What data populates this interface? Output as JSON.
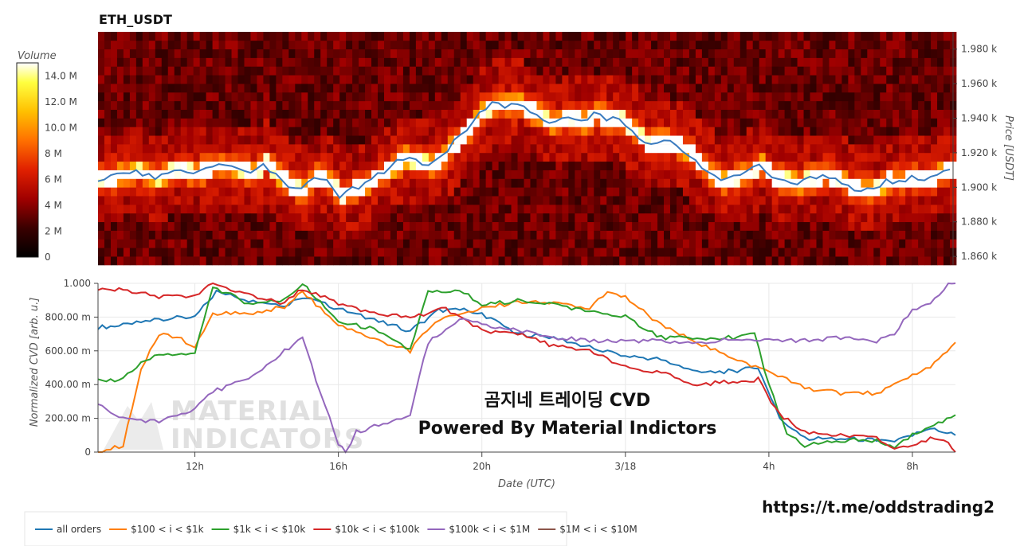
{
  "chart_data": [
    {
      "type": "heatmap",
      "title": "ETH_USDT",
      "ylabel": "Price [USDT]",
      "colorbar": {
        "title": "Volume",
        "ticks": [
          "0",
          "2 M",
          "4 M",
          "6 M",
          "8 M",
          "10.0 M",
          "12.0 M",
          "14.0 M"
        ],
        "range": [
          0,
          15
        ]
      },
      "price_ticks": [
        "1.860 k",
        "1.880 k",
        "1.900 k",
        "1.920 k",
        "1.940 k",
        "1.960 k",
        "1.980 k"
      ],
      "price_tick_values": [
        1860,
        1880,
        1900,
        1920,
        1940,
        1960,
        1980
      ],
      "ylim": [
        1855,
        1990
      ],
      "price_line": {
        "color": "#3a7bbf",
        "points": [
          [
            0,
            1905
          ],
          [
            6,
            1907
          ],
          [
            12,
            1909
          ],
          [
            18,
            1906
          ],
          [
            24,
            1910
          ],
          [
            30,
            1908
          ],
          [
            36,
            1912
          ],
          [
            42,
            1912
          ],
          [
            48,
            1908
          ],
          [
            52,
            1914
          ],
          [
            56,
            1907
          ],
          [
            60,
            1901
          ],
          [
            64,
            1898
          ],
          [
            68,
            1906
          ],
          [
            72,
            1903
          ],
          [
            76,
            1895
          ],
          [
            80,
            1899
          ],
          [
            84,
            1902
          ],
          [
            88,
            1907
          ],
          [
            92,
            1912
          ],
          [
            96,
            1917
          ],
          [
            100,
            1915
          ],
          [
            104,
            1913
          ],
          [
            108,
            1918
          ],
          [
            112,
            1926
          ],
          [
            116,
            1934
          ],
          [
            120,
            1943
          ],
          [
            124,
            1948
          ],
          [
            128,
            1947
          ],
          [
            132,
            1948
          ],
          [
            136,
            1944
          ],
          [
            140,
            1939
          ],
          [
            144,
            1937
          ],
          [
            148,
            1941
          ],
          [
            152,
            1938
          ],
          [
            156,
            1942
          ],
          [
            160,
            1940
          ],
          [
            164,
            1939
          ],
          [
            168,
            1933
          ],
          [
            172,
            1925
          ],
          [
            176,
            1926
          ],
          [
            180,
            1926
          ],
          [
            184,
            1922
          ],
          [
            188,
            1916
          ],
          [
            192,
            1908
          ],
          [
            196,
            1903
          ],
          [
            200,
            1906
          ],
          [
            204,
            1908
          ],
          [
            208,
            1913
          ],
          [
            212,
            1906
          ],
          [
            216,
            1904
          ],
          [
            220,
            1903
          ],
          [
            224,
            1905
          ],
          [
            228,
            1907
          ],
          [
            232,
            1905
          ],
          [
            236,
            1900
          ],
          [
            240,
            1898
          ],
          [
            244,
            1899
          ],
          [
            248,
            1904
          ],
          [
            252,
            1903
          ],
          [
            256,
            1906
          ],
          [
            260,
            1904
          ],
          [
            264,
            1908
          ],
          [
            268,
            1910
          ]
        ]
      }
    },
    {
      "type": "line",
      "ylabel": "Normalized CVD [arb. u.]",
      "xlabel": "Date (UTC)",
      "ylim": [
        0,
        1
      ],
      "y_ticks": [
        "0",
        "200.00 m",
        "400.00 m",
        "600.00 m",
        "800.00 m",
        "1.000"
      ],
      "x_ticks": [
        "12h",
        "16h",
        "20h",
        "3/18",
        "4h",
        "8h"
      ],
      "x_tick_hours": [
        12,
        16,
        20,
        24,
        28,
        32
      ],
      "xlim": [
        9.3,
        33.2
      ],
      "series": [
        {
          "name": "all orders",
          "color": "#1f77b4",
          "points": [
            [
              9.3,
              0.74
            ],
            [
              10,
              0.75
            ],
            [
              11,
              0.79
            ],
            [
              12,
              0.8
            ],
            [
              12.6,
              0.95
            ],
            [
              13.5,
              0.9
            ],
            [
              14.5,
              0.87
            ],
            [
              15,
              0.92
            ],
            [
              16,
              0.85
            ],
            [
              17,
              0.78
            ],
            [
              18,
              0.72
            ],
            [
              18.8,
              0.84
            ],
            [
              19.5,
              0.84
            ],
            [
              20,
              0.82
            ],
            [
              21,
              0.7
            ],
            [
              22,
              0.68
            ],
            [
              23,
              0.62
            ],
            [
              24,
              0.57
            ],
            [
              25,
              0.55
            ],
            [
              26,
              0.47
            ],
            [
              27,
              0.48
            ],
            [
              27.7,
              0.5
            ],
            [
              28.3,
              0.2
            ],
            [
              29,
              0.08
            ],
            [
              30,
              0.08
            ],
            [
              31,
              0.07
            ],
            [
              31.5,
              0.06
            ],
            [
              32.5,
              0.14
            ],
            [
              33.2,
              0.1
            ]
          ]
        },
        {
          "name": "$100 < i < $1k",
          "color": "#ff7f0e",
          "points": [
            [
              9.3,
              0.0
            ],
            [
              10,
              0.04
            ],
            [
              10.5,
              0.5
            ],
            [
              11,
              0.7
            ],
            [
              11.5,
              0.68
            ],
            [
              12,
              0.63
            ],
            [
              12.5,
              0.82
            ],
            [
              13.5,
              0.82
            ],
            [
              14.5,
              0.86
            ],
            [
              15,
              0.95
            ],
            [
              16,
              0.75
            ],
            [
              17,
              0.67
            ],
            [
              18,
              0.6
            ],
            [
              18.7,
              0.78
            ],
            [
              19.5,
              0.83
            ],
            [
              20,
              0.85
            ],
            [
              21,
              0.89
            ],
            [
              22,
              0.88
            ],
            [
              23,
              0.85
            ],
            [
              23.5,
              0.95
            ],
            [
              24,
              0.92
            ],
            [
              25,
              0.75
            ],
            [
              26,
              0.65
            ],
            [
              27,
              0.55
            ],
            [
              28,
              0.48
            ],
            [
              29,
              0.38
            ],
            [
              30,
              0.35
            ],
            [
              31,
              0.35
            ],
            [
              32,
              0.45
            ],
            [
              32.5,
              0.5
            ],
            [
              33.2,
              0.65
            ]
          ]
        },
        {
          "name": "$1k < i < $10k",
          "color": "#2ca02c",
          "points": [
            [
              9.3,
              0.42
            ],
            [
              10,
              0.43
            ],
            [
              10.5,
              0.53
            ],
            [
              11,
              0.58
            ],
            [
              12,
              0.58
            ],
            [
              12.5,
              0.98
            ],
            [
              13.5,
              0.88
            ],
            [
              14.5,
              0.9
            ],
            [
              15,
              1.0
            ],
            [
              16,
              0.77
            ],
            [
              17,
              0.73
            ],
            [
              18,
              0.6
            ],
            [
              18.5,
              0.95
            ],
            [
              19.5,
              0.95
            ],
            [
              20,
              0.87
            ],
            [
              21,
              0.9
            ],
            [
              22,
              0.88
            ],
            [
              23,
              0.83
            ],
            [
              24,
              0.8
            ],
            [
              25,
              0.68
            ],
            [
              26,
              0.67
            ],
            [
              27,
              0.68
            ],
            [
              27.6,
              0.7
            ],
            [
              28,
              0.4
            ],
            [
              28.5,
              0.1
            ],
            [
              29,
              0.04
            ],
            [
              30,
              0.07
            ],
            [
              31,
              0.07
            ],
            [
              31.5,
              0.02
            ],
            [
              32,
              0.1
            ],
            [
              33.2,
              0.22
            ]
          ]
        },
        {
          "name": "$10k < i < $100k",
          "color": "#d62728",
          "points": [
            [
              9.3,
              0.96
            ],
            [
              10,
              0.96
            ],
            [
              11,
              0.92
            ],
            [
              12,
              0.92
            ],
            [
              12.5,
              1.0
            ],
            [
              13.5,
              0.93
            ],
            [
              14.5,
              0.88
            ],
            [
              15,
              0.97
            ],
            [
              16,
              0.88
            ],
            [
              17,
              0.82
            ],
            [
              18,
              0.8
            ],
            [
              19,
              0.85
            ],
            [
              20,
              0.72
            ],
            [
              21,
              0.7
            ],
            [
              22,
              0.63
            ],
            [
              23,
              0.6
            ],
            [
              24,
              0.5
            ],
            [
              25,
              0.47
            ],
            [
              26,
              0.4
            ],
            [
              27,
              0.42
            ],
            [
              27.7,
              0.43
            ],
            [
              28.3,
              0.22
            ],
            [
              29,
              0.12
            ],
            [
              30,
              0.1
            ],
            [
              31,
              0.08
            ],
            [
              31.5,
              0.02
            ],
            [
              32.5,
              0.08
            ],
            [
              33,
              0.05
            ],
            [
              33.2,
              0.0
            ]
          ]
        },
        {
          "name": "$100k < i < $1M",
          "color": "#9467bd",
          "points": [
            [
              9.3,
              0.28
            ],
            [
              10,
              0.2
            ],
            [
              11,
              0.18
            ],
            [
              12,
              0.25
            ],
            [
              12.5,
              0.36
            ],
            [
              13.5,
              0.43
            ],
            [
              14.5,
              0.6
            ],
            [
              15,
              0.68
            ],
            [
              15.5,
              0.35
            ],
            [
              16,
              0.05
            ],
            [
              16.2,
              0.0
            ],
            [
              16.5,
              0.12
            ],
            [
              17.5,
              0.18
            ],
            [
              18,
              0.22
            ],
            [
              18.5,
              0.65
            ],
            [
              19.5,
              0.8
            ],
            [
              20,
              0.75
            ],
            [
              21,
              0.72
            ],
            [
              22,
              0.68
            ],
            [
              23,
              0.66
            ],
            [
              24,
              0.66
            ],
            [
              25,
              0.66
            ],
            [
              26,
              0.64
            ],
            [
              27,
              0.67
            ],
            [
              28,
              0.66
            ],
            [
              29,
              0.66
            ],
            [
              30,
              0.68
            ],
            [
              31,
              0.66
            ],
            [
              31.5,
              0.7
            ],
            [
              32,
              0.85
            ],
            [
              32.5,
              0.88
            ],
            [
              33,
              1.0
            ],
            [
              33.2,
              1.0
            ]
          ]
        },
        {
          "name": "$1M < i < $10M",
          "color": "#8c564b",
          "points": []
        }
      ]
    }
  ],
  "watermark": {
    "line1": "MATERIAL",
    "line2": "INDICATORS"
  },
  "overlay": {
    "line1": "곰지네 트레이딩 CVD",
    "line2": "Powered By Material Indictors"
  },
  "telegram_url": "https://t.me/oddstrading2"
}
